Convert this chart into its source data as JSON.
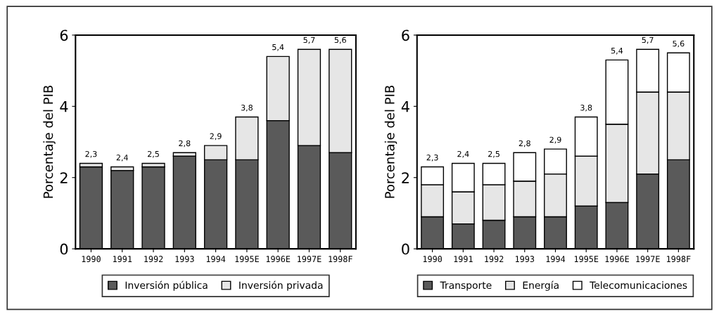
{
  "chart_data": [
    {
      "type": "bar",
      "stacked": true,
      "ylabel": "Porcentaje del PIB",
      "categories": [
        "1990",
        "1991",
        "1992",
        "1993",
        "1994",
        "1995E",
        "1996E",
        "1997E",
        "1998F"
      ],
      "ylim": [
        0,
        6
      ],
      "yticks": [
        0,
        2,
        4,
        6
      ],
      "grid": false,
      "legend": "bottom",
      "series": [
        {
          "name": "Inversión pública",
          "color": "#5a5a5a",
          "values": [
            2.3,
            2.2,
            2.3,
            2.6,
            2.5,
            2.5,
            3.6,
            2.9,
            2.7
          ]
        },
        {
          "name": "Inversión privada",
          "color": "#e6e6e6",
          "values": [
            0.1,
            0.1,
            0.1,
            0.1,
            0.4,
            1.2,
            1.8,
            2.7,
            2.9
          ]
        }
      ],
      "totals": [
        "2,3",
        "2,4",
        "2,5",
        "2,8",
        "2,9",
        "3,8",
        "5,4",
        "5,7",
        "5,6"
      ]
    },
    {
      "type": "bar",
      "stacked": true,
      "ylabel": "Porcentaje del PIB",
      "categories": [
        "1990",
        "1991",
        "1992",
        "1993",
        "1994",
        "1995E",
        "1996E",
        "1997E",
        "1998F"
      ],
      "ylim": [
        0,
        6
      ],
      "yticks": [
        0,
        2,
        4,
        6
      ],
      "grid": false,
      "legend": "bottom",
      "series": [
        {
          "name": "Transporte",
          "color": "#5a5a5a",
          "values": [
            0.9,
            0.7,
            0.8,
            0.9,
            0.9,
            1.2,
            1.3,
            2.1,
            2.5
          ]
        },
        {
          "name": "Energía",
          "color": "#e6e6e6",
          "values": [
            0.9,
            0.9,
            1.0,
            1.0,
            1.2,
            1.4,
            2.2,
            2.3,
            1.9
          ]
        },
        {
          "name": "Telecomunicaciones",
          "color": "#ffffff",
          "values": [
            0.5,
            0.8,
            0.6,
            0.8,
            0.7,
            1.1,
            1.8,
            1.2,
            1.1
          ]
        }
      ],
      "totals": [
        "2,3",
        "2,4",
        "2,5",
        "2,8",
        "2,9",
        "3,8",
        "5,4",
        "5,7",
        "5,6"
      ]
    }
  ]
}
